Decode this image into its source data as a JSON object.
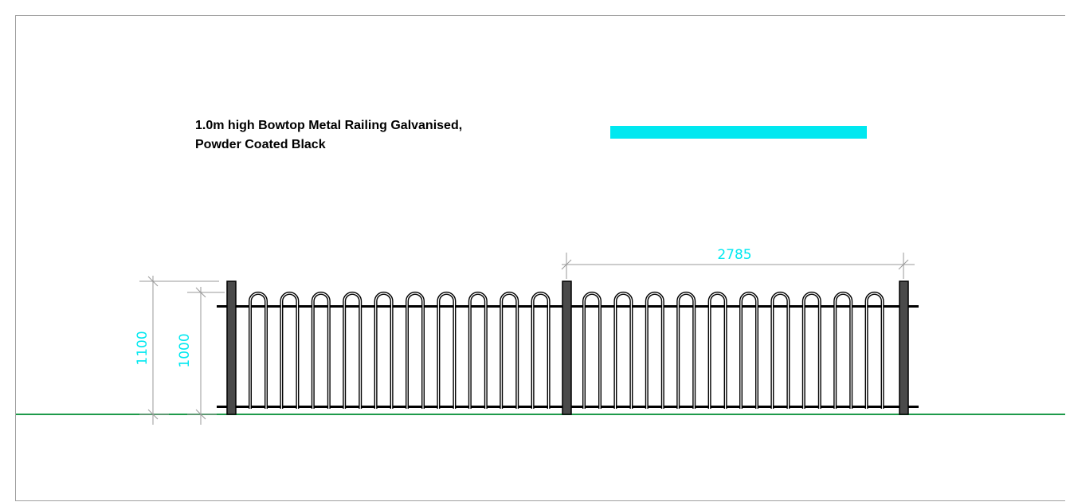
{
  "title": {
    "line1": "1.0m high Bowtop Metal Railing Galvanised,",
    "line2": "Powder Coated Black"
  },
  "legend_swatch_color": "#00E8F0",
  "dimension_color": "#00E8F0",
  "ground_line_color": "#1E9A4A",
  "railing_color": "#000000",
  "dimensions": {
    "panel_width": "2785",
    "overall_height": "1100",
    "railing_height": "1000"
  },
  "bays": [
    {
      "name": "left-bay",
      "bows": 10
    },
    {
      "name": "right-bay",
      "bows": 10
    }
  ]
}
